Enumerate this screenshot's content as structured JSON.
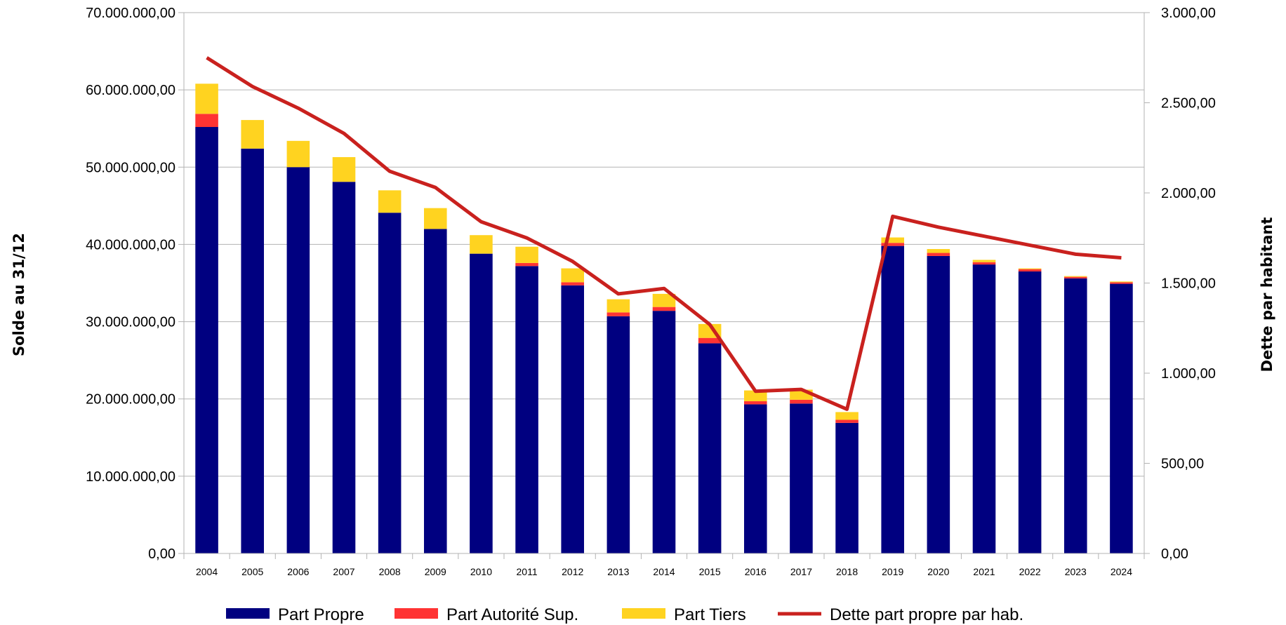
{
  "chart_data": {
    "type": "bar",
    "stacked": true,
    "ylabel": "Solde au 31/12",
    "y2label": "Dette par habitant",
    "ylim": [
      0,
      70000000
    ],
    "y2lim": [
      0,
      3000
    ],
    "yticks": [
      "0,00",
      "10.000.000,00",
      "20.000.000,00",
      "30.000.000,00",
      "40.000.000,00",
      "50.000.000,00",
      "60.000.000,00",
      "70.000.000,00"
    ],
    "y2ticks": [
      "0,00",
      "500,00",
      "1.000,00",
      "1.500,00",
      "2.000,00",
      "2.500,00",
      "3.000,00"
    ],
    "grid": true,
    "legend_position": "bottom",
    "categories": [
      "2004",
      "2005",
      "2006",
      "2007",
      "2008",
      "2009",
      "2010",
      "2011",
      "2012",
      "2013",
      "2014",
      "2015",
      "2016",
      "2017",
      "2018",
      "2019",
      "2020",
      "2021",
      "2022",
      "2023",
      "2024"
    ],
    "series": [
      {
        "name": "Part Propre",
        "type": "bar",
        "axis": "left",
        "color": "#000080",
        "values": [
          55200000,
          52400000,
          50000000,
          48100000,
          44100000,
          42000000,
          38800000,
          37200000,
          34700000,
          30700000,
          31400000,
          27200000,
          19300000,
          19400000,
          16900000,
          39800000,
          38500000,
          37400000,
          36500000,
          35600000,
          34900000
        ]
      },
      {
        "name": "Part Autorité Sup.",
        "type": "bar",
        "axis": "left",
        "color": "#ff3333",
        "values": [
          1700000,
          0,
          0,
          0,
          0,
          0,
          0,
          400000,
          400000,
          500000,
          500000,
          700000,
          400000,
          500000,
          400000,
          400000,
          400000,
          300000,
          300000,
          200000,
          200000
        ]
      },
      {
        "name": "Part Tiers",
        "type": "bar",
        "axis": "left",
        "color": "#ffd320",
        "values": [
          3900000,
          3700000,
          3400000,
          3200000,
          2900000,
          2700000,
          2400000,
          2100000,
          1800000,
          1700000,
          1700000,
          1800000,
          1400000,
          1300000,
          1000000,
          700000,
          500000,
          300000,
          100000,
          100000,
          100000
        ]
      },
      {
        "name": "Dette part propre par hab.",
        "type": "line",
        "axis": "right",
        "color": "#c9211e",
        "values": [
          2750,
          2590,
          2470,
          2330,
          2120,
          2030,
          1840,
          1750,
          1620,
          1440,
          1470,
          1270,
          900,
          910,
          800,
          1870,
          1810,
          1760,
          1710,
          1660,
          1640
        ]
      }
    ]
  }
}
